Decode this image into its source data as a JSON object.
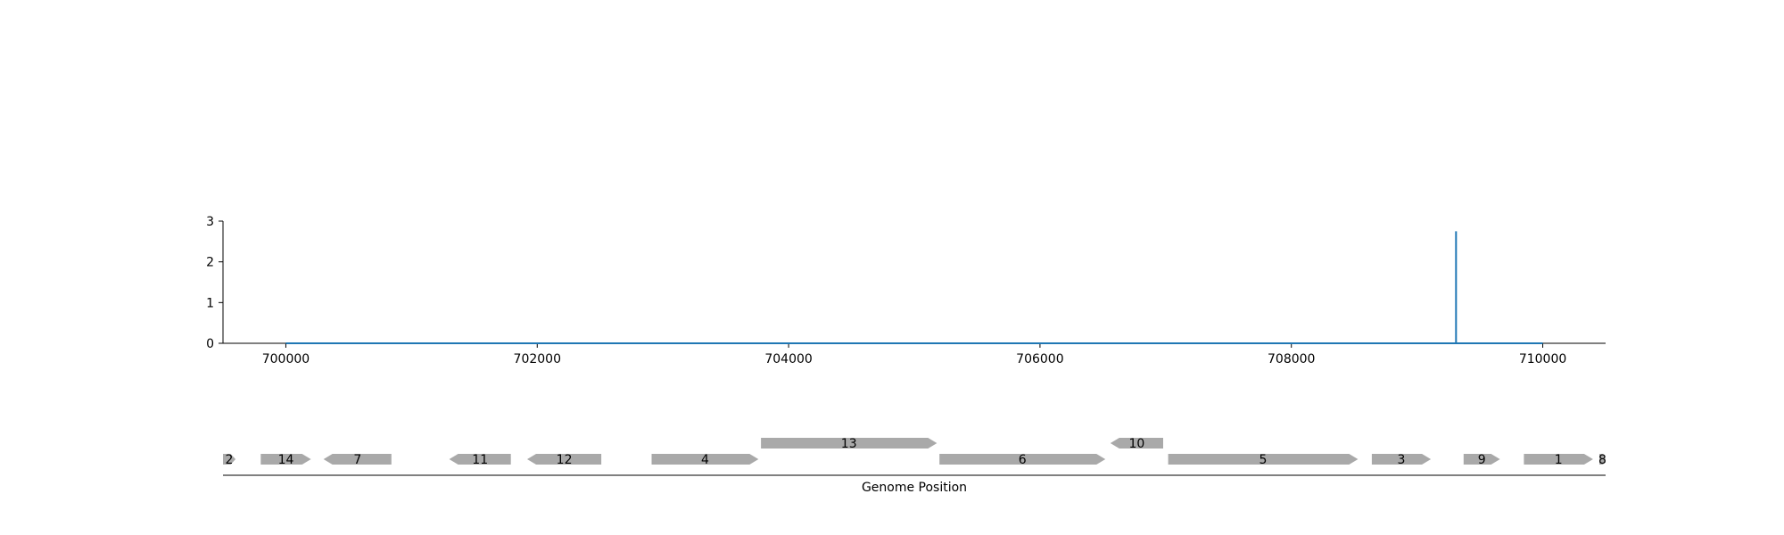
{
  "colors": {
    "line": "#1f77b4",
    "gene": "#a9a9a9",
    "axis": "#000000"
  },
  "chart_data": [
    {
      "type": "line",
      "title": "",
      "xlabel": "",
      "ylabel": "",
      "xlim": [
        699500,
        710500
      ],
      "ylim": [
        0,
        3
      ],
      "x_ticks": [
        700000,
        702000,
        704000,
        706000,
        708000,
        710000
      ],
      "x_tick_labels": [
        "700000",
        "702000",
        "704000",
        "706000",
        "708000",
        "710000"
      ],
      "y_ticks": [
        0,
        1,
        2,
        3
      ],
      "y_tick_labels": [
        "0",
        "1",
        "2",
        "3"
      ],
      "grid": false,
      "series": [
        {
          "x": [
            700000,
            709310,
            709310,
            709310,
            709310,
            709320,
            710000
          ],
          "y": [
            0,
            0,
            2.75,
            2.75,
            0,
            0,
            0
          ]
        }
      ]
    },
    {
      "type": "gene_track",
      "xlabel": "Genome Position",
      "xlim": [
        699500,
        710500
      ],
      "genes": [
        {
          "label": "2",
          "start": 699500,
          "end": 699600,
          "strand": "+",
          "row": 0
        },
        {
          "label": "14",
          "start": 699800,
          "end": 700200,
          "strand": "+",
          "row": 0
        },
        {
          "label": "7",
          "start": 700300,
          "end": 700840,
          "strand": "-",
          "row": 0
        },
        {
          "label": "11",
          "start": 701300,
          "end": 701790,
          "strand": "-",
          "row": 0
        },
        {
          "label": "12",
          "start": 701920,
          "end": 702510,
          "strand": "-",
          "row": 0
        },
        {
          "label": "4",
          "start": 702910,
          "end": 703760,
          "strand": "+",
          "row": 0
        },
        {
          "label": "13",
          "start": 703780,
          "end": 705180,
          "strand": "+",
          "row": 1
        },
        {
          "label": "6",
          "start": 705200,
          "end": 706520,
          "strand": "+",
          "row": 0
        },
        {
          "label": "10",
          "start": 706560,
          "end": 706980,
          "strand": "-",
          "row": 1
        },
        {
          "label": "5",
          "start": 707020,
          "end": 708530,
          "strand": "+",
          "row": 0
        },
        {
          "label": "3",
          "start": 708640,
          "end": 709110,
          "strand": "+",
          "row": 0
        },
        {
          "label": "9",
          "start": 709370,
          "end": 709660,
          "strand": "+",
          "row": 0
        },
        {
          "label": "1",
          "start": 709850,
          "end": 710400,
          "strand": "+",
          "row": 0
        },
        {
          "label": "8",
          "start": 710450,
          "end": 710500,
          "strand": "+",
          "row": 0
        }
      ]
    }
  ]
}
